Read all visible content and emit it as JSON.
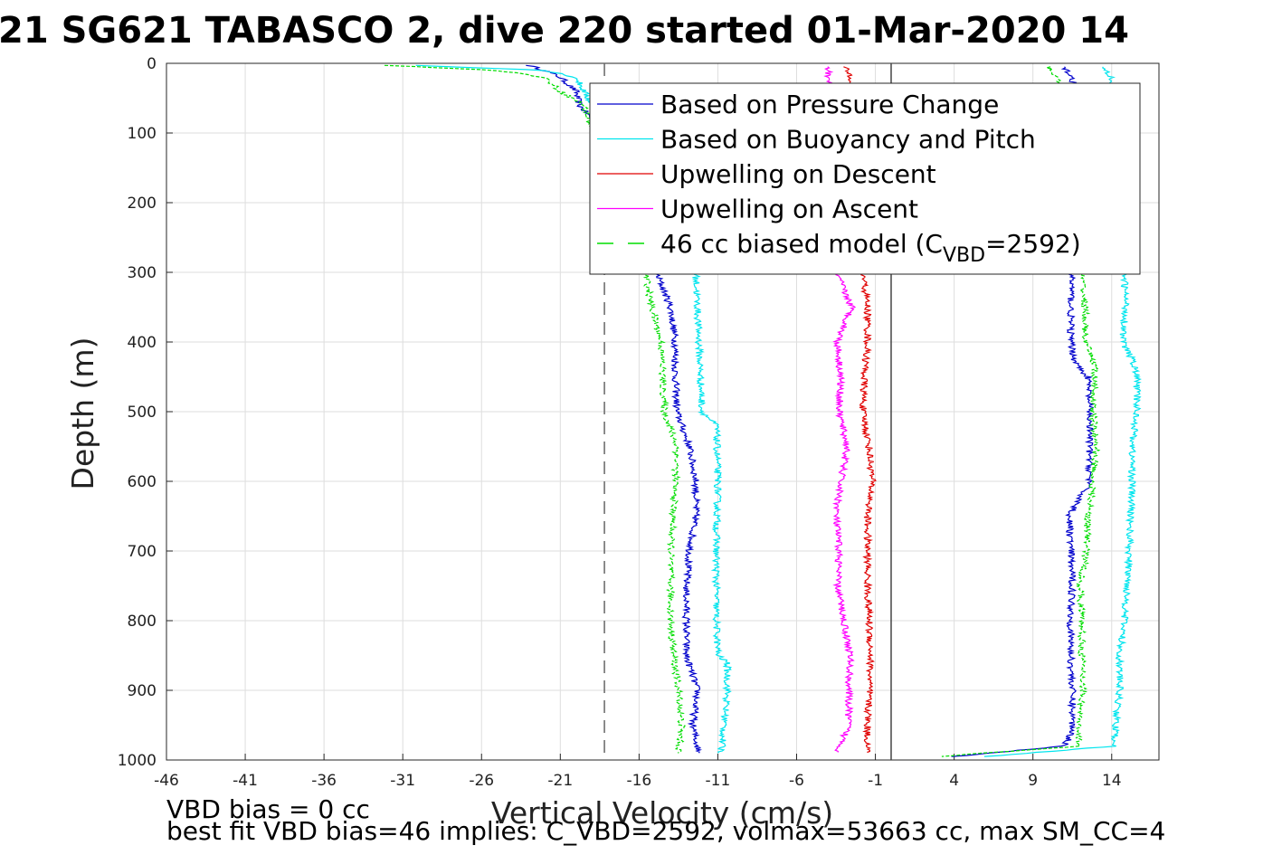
{
  "chart_data": {
    "type": "line",
    "title": "21 SG621 TABASCO 2, dive 220 started 01-Mar-2020 14",
    "xlabel": "Vertical Velocity (cm/s)",
    "ylabel": "Depth (m)",
    "xlim": [
      -46,
      17
    ],
    "ylim": [
      0,
      1000
    ],
    "y_reversed": true,
    "grid": true,
    "xticks": [
      -46,
      -41,
      -36,
      -31,
      -26,
      -21,
      -16,
      -11,
      -6,
      -1,
      4,
      9,
      14
    ],
    "yticks": [
      0,
      100,
      200,
      300,
      400,
      500,
      600,
      700,
      800,
      900,
      1000
    ],
    "legend_position": "top-right",
    "legend": [
      {
        "label": "Based on Pressure Change",
        "color": "#0000cc",
        "style": "solid"
      },
      {
        "label": "Based on Buoyancy and Pitch",
        "color": "#00e5ee",
        "style": "solid"
      },
      {
        "label": "Upwelling on Descent",
        "color": "#e00000",
        "style": "solid"
      },
      {
        "label": "Upwelling on Ascent",
        "color": "#ff00ff",
        "style": "solid"
      },
      {
        "label_main": "46 cc biased model (C",
        "label_sub": "VBD",
        "label_end": "=2592)",
        "color": "#00dd00",
        "style": "dashed"
      }
    ],
    "reference_lines": [
      {
        "x": -18.2,
        "color": "#666666",
        "style": "dashed"
      },
      {
        "x": 0,
        "color": "#444444",
        "style": "solid"
      }
    ],
    "series": [
      {
        "id": "pressure_descent",
        "color": "#0000cc",
        "depth": [
          3,
          10,
          20,
          40,
          60,
          80,
          100,
          200,
          300,
          350,
          400,
          450,
          500,
          550,
          600,
          650,
          700,
          750,
          800,
          850,
          900,
          950,
          990
        ],
        "velocity": [
          -23,
          -22,
          -21,
          -20,
          -19.8,
          -19,
          -17,
          -15.5,
          -14.9,
          -14,
          -13.7,
          -13.7,
          -13.6,
          -12.8,
          -12.4,
          -12.4,
          -12.8,
          -13,
          -13,
          -13,
          -12.3,
          -12.6,
          -12.2
        ]
      },
      {
        "id": "buoyancy_descent",
        "color": "#00e5ee",
        "depth": [
          3,
          10,
          20,
          40,
          60,
          100,
          200,
          300,
          350,
          400,
          450,
          500,
          520,
          600,
          700,
          800,
          850,
          860,
          900,
          950,
          990
        ],
        "velocity": [
          -30,
          -22,
          -20,
          -19.5,
          -19,
          -17,
          -13.5,
          -12.4,
          -12.3,
          -12.2,
          -12.1,
          -12.0,
          -11.1,
          -11.0,
          -11.1,
          -11.1,
          -11.0,
          -10.4,
          -10.4,
          -10.6,
          -10.8
        ]
      },
      {
        "id": "model_descent",
        "color": "#00dd00",
        "depth": [
          3,
          10,
          20,
          40,
          60,
          100,
          200,
          300,
          350,
          400,
          450,
          500,
          550,
          600,
          700,
          800,
          850,
          900,
          950,
          990
        ],
        "velocity": [
          -32,
          -25,
          -22,
          -21,
          -19.5,
          -19,
          -16,
          -15.6,
          -15.2,
          -14.6,
          -14.5,
          -14.4,
          -13.6,
          -13.7,
          -14.0,
          -14.0,
          -13.8,
          -13.5,
          -13.3,
          -13.5
        ]
      },
      {
        "id": "upwelling_descent",
        "color": "#e00000",
        "depth": [
          5,
          20,
          100,
          200,
          300,
          350,
          400,
          450,
          500,
          550,
          600,
          650,
          700,
          750,
          800,
          850,
          900,
          950,
          990
        ],
        "velocity": [
          -3.0,
          -2.5,
          -2.0,
          -2.0,
          -1.8,
          -1.5,
          -1.5,
          -1.7,
          -1.8,
          -1.4,
          -1.2,
          -1.5,
          -1.5,
          -1.5,
          -1.4,
          -1.3,
          -1.4,
          -1.5,
          -1.5
        ]
      },
      {
        "id": "upwelling_ascent",
        "color": "#ff00ff",
        "depth": [
          5,
          20,
          100,
          200,
          300,
          350,
          400,
          450,
          500,
          550,
          600,
          650,
          700,
          750,
          800,
          850,
          900,
          950,
          990
        ],
        "velocity": [
          -4.0,
          -4.0,
          -3.5,
          -3.2,
          -3.5,
          -2.5,
          -3.4,
          -3.2,
          -3.3,
          -2.8,
          -3.2,
          -3.5,
          -3.3,
          -3.4,
          -3.0,
          -2.6,
          -2.7,
          -2.7,
          -3.4
        ]
      },
      {
        "id": "pressure_ascent",
        "color": "#0000cc",
        "depth": [
          995,
          980,
          960,
          900,
          850,
          800,
          750,
          700,
          650,
          600,
          550,
          500,
          450,
          430,
          400,
          350,
          300,
          200,
          100,
          20,
          5
        ],
        "velocity": [
          4,
          11,
          11.5,
          11.5,
          11.4,
          11.4,
          11.5,
          11.4,
          11.3,
          12.6,
          12.6,
          12.6,
          12.5,
          11.7,
          11.4,
          11.4,
          11.5,
          12,
          11.8,
          11.5,
          11
        ],
        "note": "ascent"
      },
      {
        "id": "buoyancy_ascent",
        "color": "#00e5ee",
        "depth": [
          995,
          980,
          960,
          900,
          850,
          800,
          750,
          700,
          650,
          600,
          550,
          500,
          450,
          430,
          400,
          350,
          300,
          200,
          100,
          20,
          5
        ],
        "velocity": [
          6,
          14.2,
          14.2,
          14.5,
          14.5,
          14.8,
          15.0,
          15.1,
          15.2,
          15.3,
          15.3,
          15.6,
          15.6,
          15.4,
          14.7,
          14.9,
          14.8,
          14.5,
          14.2,
          14,
          13.5
        ]
      },
      {
        "id": "model_ascent",
        "color": "#00dd00",
        "depth": [
          995,
          980,
          960,
          900,
          850,
          800,
          750,
          700,
          650,
          600,
          550,
          500,
          450,
          430,
          400,
          350,
          300,
          200,
          100,
          20,
          5
        ],
        "velocity": [
          3,
          12,
          11.8,
          12.2,
          12.1,
          12.1,
          12.0,
          12.4,
          12.5,
          12.8,
          13.0,
          12.8,
          12.9,
          12.9,
          12.3,
          12.3,
          12.1,
          12,
          11.5,
          10.5,
          10
        ]
      }
    ],
    "annotations": [
      "VBD bias = 0 cc",
      "best fit VBD bias=46 implies: C_VBD=2592, volmax=53663 cc, max SM_CC=4"
    ]
  }
}
